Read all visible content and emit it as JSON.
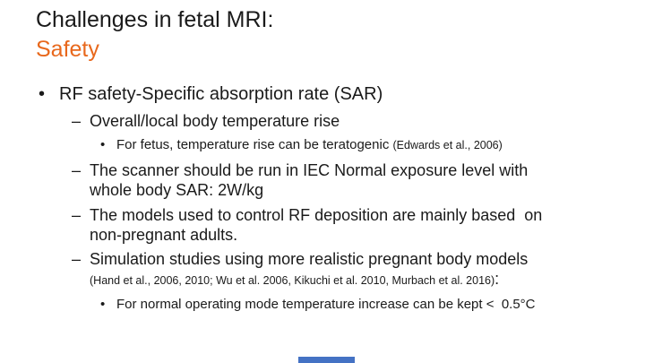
{
  "title": {
    "line1": "Challenges in fetal MRI:",
    "line2": "Safety"
  },
  "colors": {
    "title_accent": "#E8681C",
    "text": "#1A1A1A",
    "footer_bar": "#4472C4",
    "background": "#FFFFFF"
  },
  "markers": {
    "level1": "•",
    "level2": "–",
    "level3": "•"
  },
  "bullets": {
    "b1": {
      "text": "RF safety-Specific absorption rate (SAR)"
    },
    "b2": {
      "text": "Overall/local body temperature rise"
    },
    "b3": {
      "text": "For fetus, temperature rise can be teratogenic ",
      "cite": "(Edwards et al., 2006)"
    },
    "b4": {
      "text": "The scanner should be run in IEC Normal exposure level with\nwhole body SAR: 2W/kg"
    },
    "b5": {
      "text": "The models used to control RF deposition are mainly based  on\nnon-pregnant adults."
    },
    "b6": {
      "text": "Simulation studies using more realistic pregnant body models",
      "cite": "(Hand et al., 2006, 2010; Wu et al. 2006, Kikuchi et al. 2010, Murbach et al. 2016)",
      "colon": ":"
    },
    "b7": {
      "text": "For normal operating mode temperature increase can be kept <  0.5°C"
    }
  }
}
